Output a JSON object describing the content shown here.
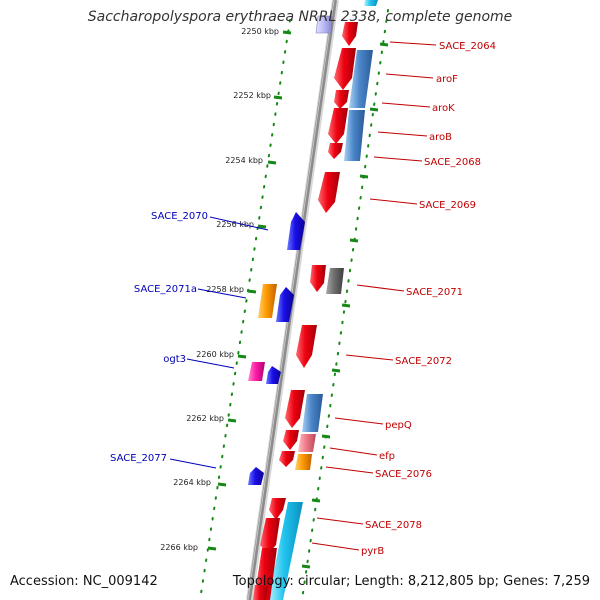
{
  "title": "Saccharopolyspora erythraea NRRL 2338, complete genome",
  "accession_text": "Accession: NC_009142",
  "topology_text": "Topology: circular; Length: 8,212,805 bp; Genes: 7,259",
  "kbp_labels": [
    "2250 kbp",
    "2252 kbp",
    "2254 kbp",
    "2256 kbp",
    "2258 kbp",
    "2260 kbp",
    "2262 kbp",
    "2264 kbp",
    "2266 kbp"
  ],
  "gene_labels": {
    "SACE_2064": "SACE_2064",
    "aroF": "aroF",
    "aroK": "aroK",
    "aroB": "aroB",
    "SACE_2068": "SACE_2068",
    "SACE_2069": "SACE_2069",
    "SACE_2070": "SACE_2070",
    "SACE_2071a": "SACE_2071a",
    "SACE_2071": "SACE_2071",
    "SACE_2072": "SACE_2072",
    "ogt3": "ogt3",
    "pepQ": "pepQ",
    "efp": "efp",
    "SACE_2076": "SACE_2076",
    "SACE_2077": "SACE_2077",
    "SACE_2078": "SACE_2078",
    "pyrB": "pyrB"
  },
  "colors": {
    "forward_strand": "#e8001a",
    "reverse_strand": "#1e10e6",
    "blue_feature": "#4a86c8",
    "cyan_feature": "#22c4ee",
    "orange_feature": "#ff9a00",
    "magenta_feature": "#ff1ca8",
    "gray_feature": "#6e6e6e",
    "pink_feature": "#f07a88",
    "tick_green": "#168816",
    "backbone": "#909090",
    "label_red": "#c00000",
    "label_blue": "#0000b8"
  }
}
